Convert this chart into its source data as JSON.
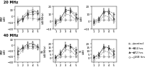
{
  "title_top": "20 MHz",
  "title_bottom": "40 MHz",
  "x_ticks": [
    1,
    2,
    3,
    4,
    5
  ],
  "x_labels": [
    "1",
    "2",
    "3",
    "4",
    "5"
  ],
  "series": {
    "control": {
      "color": "#999999",
      "marker": "s",
      "linestyle": "--",
      "label": "control",
      "mfc": "#999999"
    },
    "24h": {
      "color": "#555555",
      "marker": "o",
      "linestyle": "--",
      "label": "24 hrs",
      "mfc": "#555555"
    },
    "72h": {
      "color": "#222222",
      "marker": "^",
      "linestyle": "--",
      "label": "72 hrs",
      "mfc": "#222222"
    },
    "168h": {
      "color": "#777777",
      "marker": "D",
      "linestyle": "--",
      "label": "168 hrs",
      "mfc": "white"
    }
  },
  "top_row": [
    {
      "ylabel": "MBF\n(dB)",
      "ylim": [
        -20,
        15
      ],
      "yticks": [
        -20,
        -10,
        0,
        10
      ],
      "xlim": [
        0.5,
        5.5
      ],
      "series_data": {
        "control": {
          "y": [
            -5,
            -4,
            -3,
            -4,
            -5
          ],
          "err": [
            3,
            3,
            3,
            3,
            3
          ]
        },
        "24h": {
          "y": [
            -8,
            -4,
            2,
            3,
            4
          ],
          "err": [
            3,
            4,
            3,
            3,
            3
          ]
        },
        "72h": {
          "y": [
            -10,
            -5,
            4,
            7,
            6
          ],
          "err": [
            2,
            4,
            3,
            3,
            3
          ]
        },
        "168h": {
          "y": [
            -12,
            -2,
            7,
            10,
            6
          ],
          "err": [
            3,
            3,
            3,
            3,
            3
          ]
        }
      }
    },
    {
      "ylabel": "SS\n(dB/MHz)",
      "ylim": [
        -10,
        20
      ],
      "yticks": [
        -10,
        0,
        10,
        20
      ],
      "xlim": [
        0.5,
        5.5
      ],
      "series_data": {
        "control": {
          "y": [
            2,
            2,
            2,
            2,
            2
          ],
          "err": [
            2,
            2,
            2,
            2,
            2
          ]
        },
        "24h": {
          "y": [
            0,
            5,
            14,
            15,
            10
          ],
          "err": [
            2,
            3,
            3,
            3,
            2
          ]
        },
        "72h": {
          "y": [
            -2,
            3,
            16,
            14,
            6
          ],
          "err": [
            2,
            3,
            3,
            3,
            3
          ]
        },
        "168h": {
          "y": [
            -5,
            0,
            10,
            8,
            2
          ],
          "err": [
            2,
            2,
            3,
            3,
            3
          ]
        }
      }
    },
    {
      "ylabel": "SI\n(dB)",
      "ylim": [
        -10,
        20
      ],
      "yticks": [
        -10,
        0,
        10,
        20
      ],
      "xlim": [
        0.5,
        5.5
      ],
      "series_data": {
        "control": {
          "y": [
            2,
            2,
            2,
            2,
            2
          ],
          "err": [
            2,
            2,
            2,
            2,
            2
          ]
        },
        "24h": {
          "y": [
            0,
            4,
            12,
            14,
            10
          ],
          "err": [
            2,
            2,
            3,
            3,
            2
          ]
        },
        "72h": {
          "y": [
            -2,
            2,
            14,
            12,
            4
          ],
          "err": [
            2,
            3,
            3,
            3,
            3
          ]
        },
        "168h": {
          "y": [
            -4,
            0,
            8,
            6,
            0
          ],
          "err": [
            2,
            2,
            3,
            3,
            3
          ]
        }
      }
    }
  ],
  "bottom_row": [
    {
      "ylabel": "MBF\n(dB)",
      "ylim": [
        -30,
        10
      ],
      "yticks": [
        -30,
        -20,
        -10,
        0,
        10
      ],
      "xlim": [
        0.5,
        5.5
      ],
      "series_data": {
        "control": {
          "y": [
            -5,
            -5,
            -5,
            -5,
            -5
          ],
          "err": [
            2,
            2,
            2,
            2,
            2
          ]
        },
        "24h": {
          "y": [
            -10,
            -6,
            -2,
            -2,
            -4
          ],
          "err": [
            3,
            4,
            3,
            3,
            3
          ]
        },
        "72h": {
          "y": [
            -15,
            -4,
            2,
            3,
            -2
          ],
          "err": [
            3,
            4,
            3,
            3,
            3
          ]
        },
        "168h": {
          "y": [
            -22,
            -8,
            3,
            4,
            -5
          ],
          "err": [
            4,
            4,
            3,
            3,
            4
          ]
        }
      }
    },
    {
      "ylabel": "SS\n(dB/MHz)",
      "ylim": [
        -5,
        25
      ],
      "yticks": [
        0,
        5,
        10,
        15,
        20
      ],
      "xlim": [
        0.5,
        5.5
      ],
      "series_data": {
        "control": {
          "y": [
            2,
            2,
            2,
            2,
            2
          ],
          "err": [
            2,
            2,
            2,
            2,
            2
          ]
        },
        "24h": {
          "y": [
            1,
            8,
            16,
            16,
            12
          ],
          "err": [
            2,
            3,
            3,
            3,
            3
          ]
        },
        "72h": {
          "y": [
            1,
            6,
            18,
            16,
            8
          ],
          "err": [
            2,
            3,
            3,
            3,
            3
          ]
        },
        "168h": {
          "y": [
            -2,
            2,
            12,
            10,
            4
          ],
          "err": [
            2,
            2,
            3,
            3,
            3
          ]
        }
      }
    },
    {
      "ylabel": "SI\n(dB)",
      "ylim": [
        -5,
        25
      ],
      "yticks": [
        0,
        5,
        10,
        15,
        20
      ],
      "xlim": [
        0.5,
        5.5
      ],
      "series_data": {
        "control": {
          "y": [
            2,
            2,
            2,
            2,
            2
          ],
          "err": [
            2,
            2,
            2,
            2,
            2
          ]
        },
        "24h": {
          "y": [
            1,
            6,
            14,
            14,
            10
          ],
          "err": [
            2,
            2,
            3,
            3,
            3
          ]
        },
        "72h": {
          "y": [
            1,
            4,
            16,
            14,
            6
          ],
          "err": [
            2,
            3,
            3,
            3,
            3
          ]
        },
        "168h": {
          "y": [
            -2,
            1,
            10,
            8,
            2
          ],
          "err": [
            2,
            2,
            3,
            3,
            3
          ]
        }
      }
    }
  ],
  "legend_labels": [
    "control",
    "24 hrs",
    "72 hrs",
    "168 hrs"
  ],
  "legend_keys": [
    "control",
    "24h",
    "72h",
    "168h"
  ]
}
